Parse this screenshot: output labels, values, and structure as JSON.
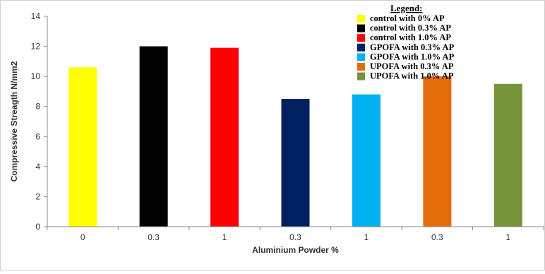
{
  "chart_data": {
    "type": "bar",
    "title": "",
    "xlabel": "Aluminium Powder %",
    "ylabel": "Compressive Streagth N/mm2",
    "ylim": [
      0,
      14
    ],
    "yticks": [
      0,
      2,
      4,
      6,
      8,
      10,
      12,
      14
    ],
    "grid": false,
    "legend_title": "Legend:",
    "legend_position": "top-right",
    "categories": [
      "0",
      "0.3",
      "1",
      "0.3",
      "1",
      "0.3",
      "1"
    ],
    "values": [
      10.6,
      12.0,
      11.9,
      8.5,
      8.8,
      10.0,
      9.5
    ],
    "colors": [
      "#ffff00",
      "#000000",
      "#ff0000",
      "#002060",
      "#00b0f0",
      "#e46c0a",
      "#77933c"
    ],
    "series": [
      {
        "name": "control with 0% AP",
        "color": "#ffff00"
      },
      {
        "name": "control with 0.3% AP",
        "color": "#000000"
      },
      {
        "name": "control with 1.0% AP",
        "color": "#ff0000"
      },
      {
        "name": "GPOFA with 0.3% AP",
        "color": "#002060"
      },
      {
        "name": "GPOFA with 1.0% AP",
        "color": "#00b0f0"
      },
      {
        "name": "UPOFA with 0.3% AP",
        "color": "#e46c0a"
      },
      {
        "name": "UPOFA with 1.0% AP",
        "color": "#77933c"
      }
    ]
  }
}
